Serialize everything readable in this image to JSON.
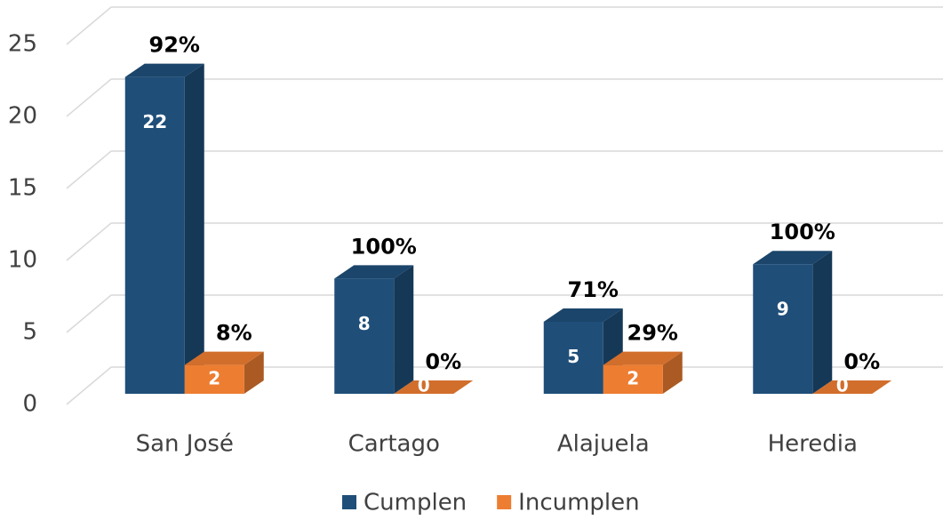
{
  "chart_data": {
    "type": "bar3d",
    "categories": [
      "San José",
      "Cartago",
      "Alajuela",
      "Heredia"
    ],
    "series": [
      {
        "name": "Cumplen",
        "color": "#1f4e79",
        "values": [
          22,
          8,
          5,
          9
        ],
        "percent_labels": [
          "92%",
          "100%",
          "71%",
          "100%"
        ]
      },
      {
        "name": "Incumplen",
        "color": "#ed7d31",
        "values": [
          2,
          0,
          2,
          0
        ],
        "percent_labels": [
          "8%",
          "0%",
          "29%",
          "0%"
        ]
      }
    ],
    "ylim": [
      0,
      25
    ],
    "yticks": [
      0,
      5,
      10,
      15,
      20,
      25
    ],
    "grid": true,
    "legend": "bottom"
  }
}
